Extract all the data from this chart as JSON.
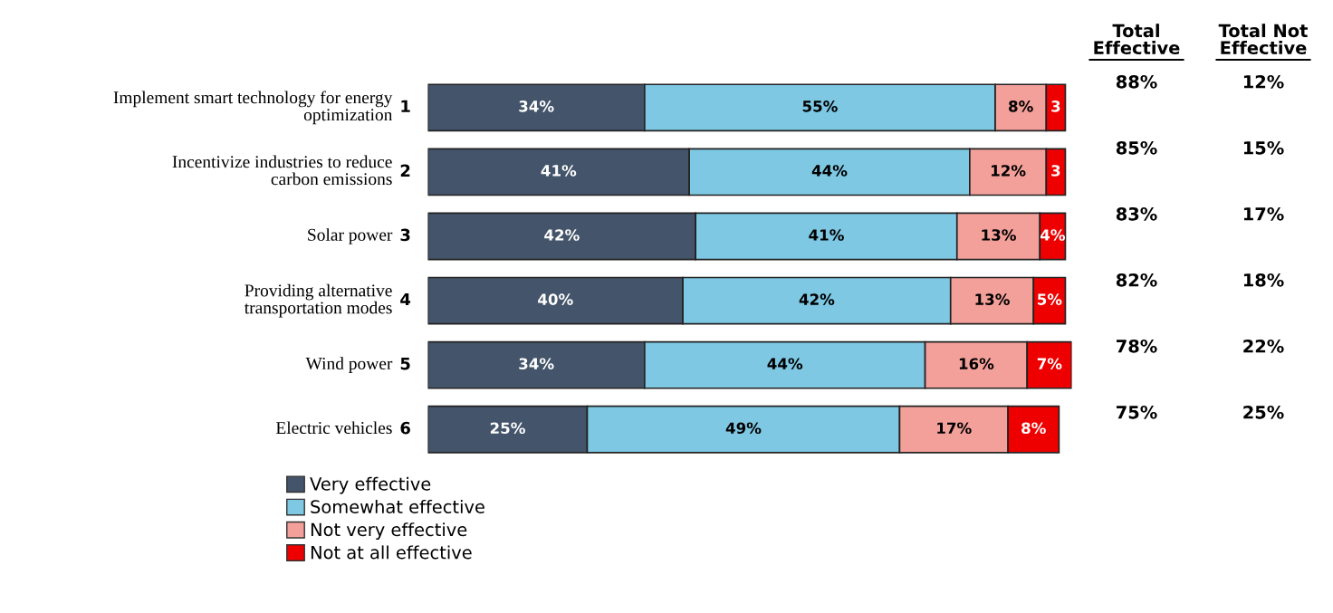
{
  "chart_data": {
    "type": "bar",
    "orientation": "horizontal",
    "stacked": true,
    "legend": "bottom left",
    "categories": [
      "Implement smart technology for energy\noptimization",
      "Incentivize industries to reduce\ncarbon emissions",
      "Solar power",
      "Providing alternative\ntransportation modes",
      "Wind power",
      "Electric vehicles"
    ],
    "series": [
      {
        "name": "Very effective",
        "color": "#44546a",
        "values": [
          34,
          41,
          42,
          40,
          34,
          25
        ],
        "value_labels": [
          "34%",
          "41%",
          "42%",
          "40%",
          "34%",
          "25%"
        ]
      },
      {
        "name": "Somewhat effective",
        "color": "#7ec8e3",
        "values": [
          55,
          44,
          41,
          42,
          44,
          49
        ],
        "value_labels": [
          "55%",
          "44%",
          "41%",
          "42%",
          "44%",
          "49%"
        ]
      },
      {
        "name": "Not very effective",
        "color": "#f4a09a",
        "values": [
          8,
          12,
          13,
          13,
          16,
          17
        ],
        "value_labels": [
          "8%",
          "12%",
          "13%",
          "13%",
          "16%",
          "17%"
        ]
      },
      {
        "name": "Not at all effective",
        "color": "#ee0000",
        "values": [
          3,
          3,
          4,
          5,
          7,
          8
        ],
        "value_labels": [
          "3",
          "3",
          "4%",
          "5%",
          "7%",
          "8%"
        ]
      }
    ],
    "xlim": [
      0,
      101
    ],
    "tick_labels": false,
    "annotations": [
      "1",
      "2",
      "3",
      "4",
      "5",
      "6",
      "Total\nEffective",
      "Total Not\nEffective",
      "88%",
      "12%",
      "85%",
      "15%",
      "83%",
      "17%",
      "82%",
      "18%",
      "78%",
      "22%",
      "75%",
      "25%"
    ]
  }
}
